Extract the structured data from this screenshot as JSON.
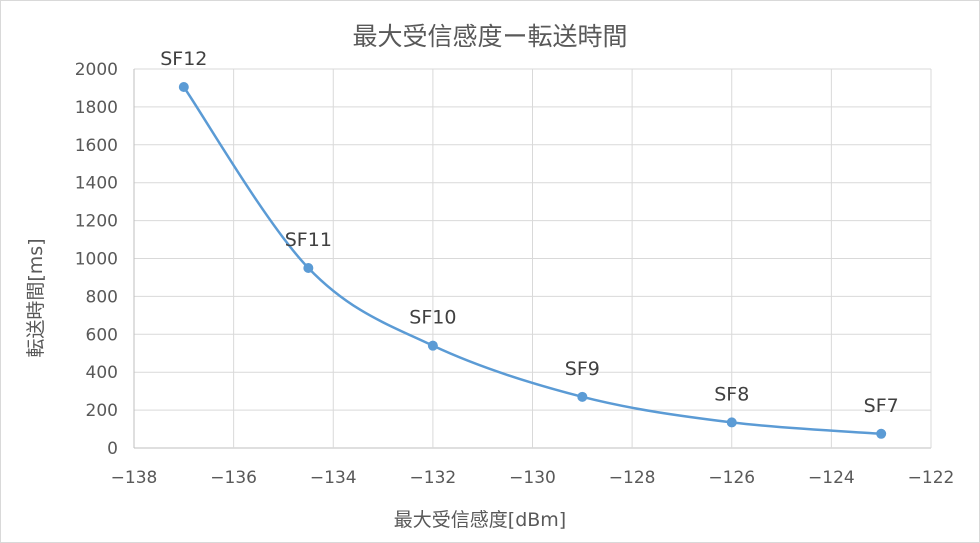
{
  "chart_data": {
    "type": "scatter",
    "title": "最大受信感度ー転送時間",
    "xlabel": "最大受信感度[dBm]",
    "ylabel": "転送時間[ms]",
    "xlim": [
      -138,
      -122
    ],
    "ylim": [
      0,
      2000
    ],
    "x_ticks": [
      -138,
      -136,
      -134,
      -132,
      -130,
      -128,
      -126,
      -124,
      -122
    ],
    "x_tick_labels": [
      "−138",
      "−136",
      "−134",
      "−132",
      "−130",
      "−128",
      "−126",
      "−124",
      "−122"
    ],
    "y_ticks": [
      0,
      200,
      400,
      600,
      800,
      1000,
      1200,
      1400,
      1600,
      1800,
      2000
    ],
    "y_tick_labels": [
      "0",
      "200",
      "400",
      "600",
      "800",
      "1000",
      "1200",
      "1400",
      "1600",
      "1800",
      "2000"
    ],
    "grid": true,
    "line_style": "smooth",
    "series": [
      {
        "color": "#5b9bd5",
        "points": [
          {
            "x": -137,
            "y": 1905,
            "label": "SF12"
          },
          {
            "x": -134.5,
            "y": 950,
            "label": "SF11"
          },
          {
            "x": -132,
            "y": 540,
            "label": "SF10"
          },
          {
            "x": -129,
            "y": 270,
            "label": "SF9"
          },
          {
            "x": -126,
            "y": 135,
            "label": "SF8"
          },
          {
            "x": -123,
            "y": 75,
            "label": "SF7"
          }
        ]
      }
    ]
  }
}
